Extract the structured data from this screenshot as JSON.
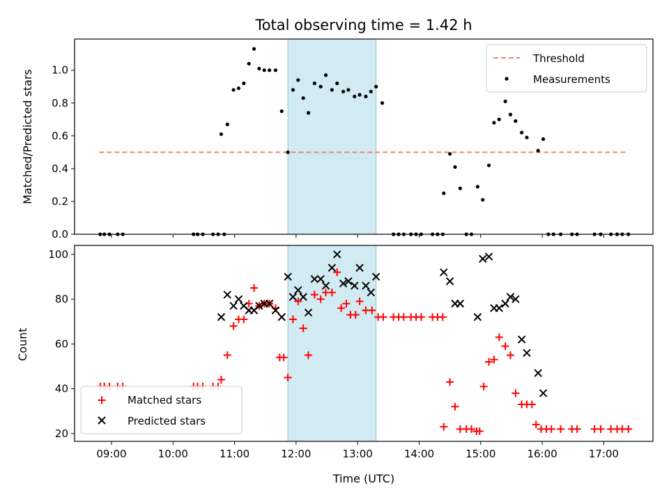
{
  "chart_data": [
    {
      "type": "scatter",
      "title": "Total observing time = 1.42 h",
      "xlabel": "",
      "ylabel": "Matched/Predicted stars",
      "ylim": [
        0,
        1.19
      ],
      "xlim": [
        "08:24",
        "17:48"
      ],
      "yticks": [
        "0.0",
        "0.2",
        "0.4",
        "0.6",
        "0.8",
        "1.0"
      ],
      "highlight_span": [
        "11:52",
        "13:18"
      ],
      "legend": {
        "position": "top-right",
        "entries": [
          "Threshold",
          "Measurements"
        ]
      },
      "colors": {
        "threshold": "#f08080",
        "measurements": "#000000",
        "span": "#add8e6"
      },
      "series": [
        {
          "name": "Threshold",
          "kind": "dashed-line",
          "points": [
            [
              "08:48",
              0.5
            ],
            [
              "17:22",
              0.5
            ]
          ]
        },
        {
          "name": "Measurements",
          "kind": "dots",
          "points": [
            [
              "08:49",
              0
            ],
            [
              "08:53",
              0
            ],
            [
              "08:58",
              0
            ],
            [
              "09:06",
              0
            ],
            [
              "09:11",
              0
            ],
            [
              "10:20",
              0
            ],
            [
              "10:24",
              0
            ],
            [
              "10:29",
              0
            ],
            [
              "10:39",
              0
            ],
            [
              "10:44",
              0
            ],
            [
              "10:50",
              0
            ],
            [
              "10:47",
              0.61
            ],
            [
              "10:53",
              0.67
            ],
            [
              "10:59",
              0.88
            ],
            [
              "11:04",
              0.89
            ],
            [
              "11:09",
              0.92
            ],
            [
              "11:14",
              1.04
            ],
            [
              "11:19",
              1.13
            ],
            [
              "11:24",
              1.01
            ],
            [
              "11:29",
              1.0
            ],
            [
              "11:34",
              1.0
            ],
            [
              "11:40",
              1.0
            ],
            [
              "11:46",
              0.75
            ],
            [
              "11:52",
              0.5
            ],
            [
              "11:57",
              0.88
            ],
            [
              "12:02",
              0.94
            ],
            [
              "12:07",
              0.83
            ],
            [
              "12:12",
              0.74
            ],
            [
              "12:18",
              0.92
            ],
            [
              "12:24",
              0.9
            ],
            [
              "12:29",
              0.97
            ],
            [
              "12:35",
              0.88
            ],
            [
              "12:40",
              0.92
            ],
            [
              "12:46",
              0.87
            ],
            [
              "12:51",
              0.88
            ],
            [
              "12:57",
              0.84
            ],
            [
              "13:02",
              0.85
            ],
            [
              "13:08",
              0.84
            ],
            [
              "13:13",
              0.87
            ],
            [
              "13:18",
              0.9
            ],
            [
              "13:24",
              0.8
            ],
            [
              "13:35",
              0
            ],
            [
              "13:40",
              0
            ],
            [
              "13:45",
              0
            ],
            [
              "13:52",
              0
            ],
            [
              "13:57",
              0
            ],
            [
              "14:02",
              0
            ],
            [
              "14:13",
              0
            ],
            [
              "14:18",
              0
            ],
            [
              "14:23",
              0
            ],
            [
              "14:24",
              0.25
            ],
            [
              "14:30",
              0.49
            ],
            [
              "14:35",
              0.41
            ],
            [
              "14:40",
              0.28
            ],
            [
              "14:46",
              0
            ],
            [
              "14:51",
              0
            ],
            [
              "14:57",
              0.29
            ],
            [
              "15:02",
              0.21
            ],
            [
              "15:08",
              0.42
            ],
            [
              "15:13",
              0.68
            ],
            [
              "15:18",
              0.7
            ],
            [
              "15:24",
              0.81
            ],
            [
              "15:29",
              0.73
            ],
            [
              "15:34",
              0.69
            ],
            [
              "15:40",
              0.62
            ],
            [
              "15:45",
              0.59
            ],
            [
              "15:56",
              0.51
            ],
            [
              "16:01",
              0.58
            ],
            [
              "16:06",
              0
            ],
            [
              "16:11",
              0
            ],
            [
              "16:18",
              0
            ],
            [
              "16:29",
              0
            ],
            [
              "16:34",
              0
            ],
            [
              "16:51",
              0
            ],
            [
              "16:57",
              0
            ],
            [
              "17:07",
              0
            ],
            [
              "17:13",
              0
            ],
            [
              "17:18",
              0
            ],
            [
              "17:24",
              0
            ]
          ]
        }
      ]
    },
    {
      "type": "scatter",
      "xlabel": "Time (UTC)",
      "ylabel": "Count",
      "ylim": [
        16.5,
        104
      ],
      "xlim": [
        "08:24",
        "17:48"
      ],
      "xticks": [
        "09:00",
        "10:00",
        "11:00",
        "12:00",
        "13:00",
        "14:00",
        "15:00",
        "16:00",
        "17:00"
      ],
      "yticks": [
        "20",
        "40",
        "60",
        "80",
        "100"
      ],
      "highlight_span": [
        "11:52",
        "13:18"
      ],
      "legend": {
        "position": "bottom-left",
        "entries": [
          "Matched stars",
          "Predicted stars"
        ]
      },
      "colors": {
        "matched": "#ff0000",
        "predicted": "#000000",
        "span": "#add8e6"
      },
      "series": [
        {
          "name": "Matched stars",
          "marker": "+",
          "points": [
            [
              "08:49",
              41
            ],
            [
              "08:53",
              41
            ],
            [
              "08:58",
              41
            ],
            [
              "09:06",
              41
            ],
            [
              "09:11",
              41
            ],
            [
              "10:20",
              41
            ],
            [
              "10:24",
              41
            ],
            [
              "10:29",
              41
            ],
            [
              "10:39",
              41
            ],
            [
              "10:44",
              41
            ],
            [
              "10:47",
              44
            ],
            [
              "10:53",
              55
            ],
            [
              "10:59",
              68
            ],
            [
              "11:04",
              71
            ],
            [
              "11:09",
              71
            ],
            [
              "11:14",
              78
            ],
            [
              "11:19",
              85
            ],
            [
              "11:24",
              77
            ],
            [
              "11:29",
              78
            ],
            [
              "11:34",
              78
            ],
            [
              "11:40",
              76
            ],
            [
              "11:44",
              54
            ],
            [
              "11:48",
              54
            ],
            [
              "11:52",
              45
            ],
            [
              "11:57",
              71
            ],
            [
              "12:02",
              79
            ],
            [
              "12:07",
              67
            ],
            [
              "12:12",
              55
            ],
            [
              "12:18",
              82
            ],
            [
              "12:24",
              80
            ],
            [
              "12:29",
              83
            ],
            [
              "12:35",
              83
            ],
            [
              "12:40",
              92
            ],
            [
              "12:44",
              76
            ],
            [
              "12:49",
              78
            ],
            [
              "12:53",
              73
            ],
            [
              "12:58",
              73
            ],
            [
              "13:02",
              79
            ],
            [
              "13:08",
              75
            ],
            [
              "13:14",
              75
            ],
            [
              "13:20",
              72
            ],
            [
              "13:25",
              72
            ],
            [
              "13:35",
              72
            ],
            [
              "13:40",
              72
            ],
            [
              "13:45",
              72
            ],
            [
              "13:52",
              72
            ],
            [
              "13:57",
              72
            ],
            [
              "14:02",
              72
            ],
            [
              "14:13",
              72
            ],
            [
              "14:18",
              72
            ],
            [
              "14:23",
              72
            ],
            [
              "14:24",
              23
            ],
            [
              "14:30",
              43
            ],
            [
              "14:35",
              32
            ],
            [
              "14:40",
              22
            ],
            [
              "14:46",
              22
            ],
            [
              "14:51",
              22
            ],
            [
              "14:56",
              21
            ],
            [
              "14:59",
              21
            ],
            [
              "15:03",
              41
            ],
            [
              "15:08",
              52
            ],
            [
              "15:13",
              53
            ],
            [
              "15:18",
              63
            ],
            [
              "15:24",
              59
            ],
            [
              "15:29",
              55
            ],
            [
              "15:34",
              38
            ],
            [
              "15:40",
              33
            ],
            [
              "15:45",
              33
            ],
            [
              "15:50",
              33
            ],
            [
              "15:54",
              24
            ],
            [
              "15:59",
              22
            ],
            [
              "16:04",
              22
            ],
            [
              "16:09",
              22
            ],
            [
              "16:18",
              22
            ],
            [
              "16:29",
              22
            ],
            [
              "16:34",
              22
            ],
            [
              "16:51",
              22
            ],
            [
              "16:57",
              22
            ],
            [
              "17:07",
              22
            ],
            [
              "17:13",
              22
            ],
            [
              "17:18",
              22
            ],
            [
              "17:24",
              22
            ]
          ]
        },
        {
          "name": "Predicted stars",
          "marker": "x",
          "points": [
            [
              "10:47",
              72
            ],
            [
              "10:53",
              82
            ],
            [
              "10:59",
              77
            ],
            [
              "11:04",
              80
            ],
            [
              "11:09",
              77
            ],
            [
              "11:14",
              75
            ],
            [
              "11:19",
              75
            ],
            [
              "11:24",
              77
            ],
            [
              "11:29",
              78
            ],
            [
              "11:34",
              78
            ],
            [
              "11:40",
              75
            ],
            [
              "11:46",
              72
            ],
            [
              "11:52",
              90
            ],
            [
              "11:57",
              81
            ],
            [
              "12:02",
              84
            ],
            [
              "12:07",
              81
            ],
            [
              "12:12",
              74
            ],
            [
              "12:18",
              89
            ],
            [
              "12:24",
              89
            ],
            [
              "12:29",
              86
            ],
            [
              "12:35",
              94
            ],
            [
              "12:40",
              100
            ],
            [
              "12:46",
              87
            ],
            [
              "12:51",
              88
            ],
            [
              "12:57",
              86
            ],
            [
              "13:02",
              94
            ],
            [
              "13:08",
              86
            ],
            [
              "13:13",
              83
            ],
            [
              "13:18",
              90
            ],
            [
              "14:24",
              92
            ],
            [
              "14:30",
              88
            ],
            [
              "14:35",
              78
            ],
            [
              "14:40",
              78
            ],
            [
              "14:57",
              72
            ],
            [
              "15:02",
              98
            ],
            [
              "15:08",
              99
            ],
            [
              "15:13",
              76
            ],
            [
              "15:18",
              76
            ],
            [
              "15:24",
              78
            ],
            [
              "15:29",
              81
            ],
            [
              "15:34",
              80
            ],
            [
              "15:40",
              62
            ],
            [
              "15:45",
              56
            ],
            [
              "15:56",
              47
            ],
            [
              "16:01",
              38
            ]
          ]
        }
      ]
    }
  ]
}
